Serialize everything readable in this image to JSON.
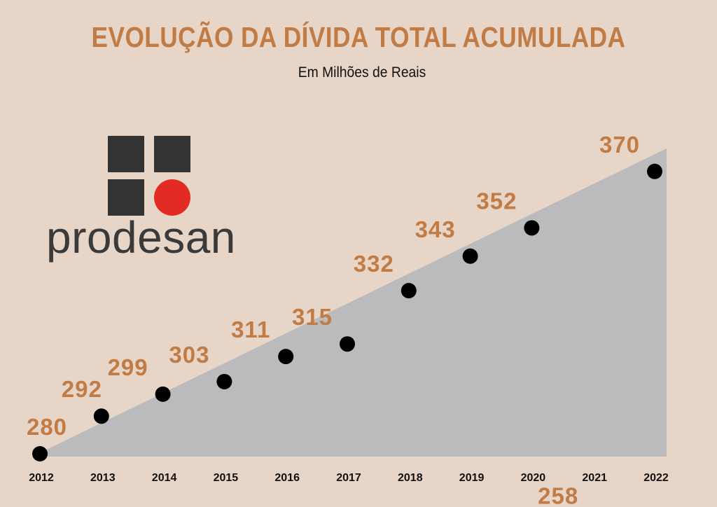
{
  "colors": {
    "background": "#e7d5c8",
    "accent": "#c17b45",
    "area": "#bbbbbe",
    "marker": "#000000",
    "logo_dark": "#333333",
    "logo_red": "#e22b25"
  },
  "logo": {
    "text": "prodesan"
  },
  "chart_data": {
    "type": "area",
    "title": "EVOLUÇÃO DA DÍVIDA TOTAL ACUMULADA",
    "subtitle": "Em Milhões de Reais",
    "categories": [
      "2012",
      "2013",
      "2014",
      "2015",
      "2016",
      "2017",
      "2018",
      "2019",
      "2020",
      "2021",
      "2022"
    ],
    "values": [
      280,
      292,
      299,
      303,
      311,
      315,
      332,
      343,
      352,
      258,
      370
    ],
    "data_labels": [
      "280",
      "292",
      "299",
      "303",
      "311",
      "315",
      "332",
      "343",
      "352",
      "258",
      "370"
    ],
    "grid": false,
    "legend": "none"
  }
}
